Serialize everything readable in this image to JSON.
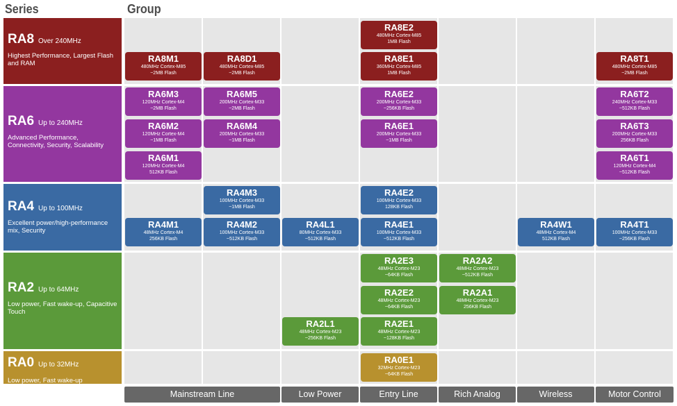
{
  "headers": {
    "series": "Series",
    "group": "Group"
  },
  "series": [
    {
      "code": "RA8",
      "speed": "Over 240MHz",
      "desc": "Highest Performance, Largest Flash and RAM",
      "color": "#8b1f1f"
    },
    {
      "code": "RA6",
      "speed": "Up to 240MHz",
      "desc": "Advanced Performance, Connectivity, Security, Scalability",
      "color": "#93379f"
    },
    {
      "code": "RA4",
      "speed": "Up to 100MHz",
      "desc": "Excellent power/high-performance mix, Security",
      "color": "#3a6aa3"
    },
    {
      "code": "RA2",
      "speed": "Up to 64MHz",
      "desc": "Low power, Fast wake-up, Capacitive Touch",
      "color": "#5b9a3a"
    },
    {
      "code": "RA0",
      "speed": "Up to 32MHz",
      "desc": "Low power, Fast wake-up",
      "color": "#b8912e"
    }
  ],
  "groups": [
    "Mainstream Line",
    "Low Power",
    "Entry Line",
    "Rich Analog",
    "Wireless",
    "Motor Control"
  ],
  "chips": [
    {
      "name": "RA8E2",
      "l1": "480MHz Cortex-M85",
      "l2": "1MB Flash"
    },
    {
      "name": "RA8M1",
      "l1": "480MHz Cortex-M85",
      "l2": "~2MB Flash"
    },
    {
      "name": "RA8D1",
      "l1": "480MHz Cortex-M85",
      "l2": "~2MB Flash"
    },
    {
      "name": "RA8E1",
      "l1": "360MHz Cortex-M85",
      "l2": "1MB Flash"
    },
    {
      "name": "RA8T1",
      "l1": "480MHz Cortex-M85",
      "l2": "~2MB Flash"
    },
    {
      "name": "RA6M3",
      "l1": "120MHz Cortex-M4",
      "l2": "~2MB Flash"
    },
    {
      "name": "RA6M5",
      "l1": "200MHz Cortex-M33",
      "l2": "~2MB Flash"
    },
    {
      "name": "RA6E2",
      "l1": "200MHz Cortex-M33",
      "l2": "~256KB Flash"
    },
    {
      "name": "RA6T2",
      "l1": "240MHz Cortex-M33",
      "l2": "~512KB Flash"
    },
    {
      "name": "RA6M2",
      "l1": "120MHz Cortex-M4",
      "l2": "~1MB Flash"
    },
    {
      "name": "RA6M4",
      "l1": "200MHz Cortex-M33",
      "l2": "~1MB Flash"
    },
    {
      "name": "RA6E1",
      "l1": "200MHz Cortex-M33",
      "l2": "~1MB Flash"
    },
    {
      "name": "RA6T3",
      "l1": "200MHz Cortex-M33",
      "l2": "256KB Flash"
    },
    {
      "name": "RA6M1",
      "l1": "120MHz Cortex-M4",
      "l2": "512KB Flash"
    },
    {
      "name": "RA6T1",
      "l1": "120MHz Cortex-M4",
      "l2": "~512KB Flash"
    },
    {
      "name": "RA4M3",
      "l1": "100MHz Cortex-M33",
      "l2": "~1MB Flash"
    },
    {
      "name": "RA4E2",
      "l1": "100MHz Cortex-M33",
      "l2": "128KB Flash"
    },
    {
      "name": "RA4M1",
      "l1": "48MHz Cortex-M4",
      "l2": "256KB Flash"
    },
    {
      "name": "RA4M2",
      "l1": "100MHz Cortex-M33",
      "l2": "~512KB Flash"
    },
    {
      "name": "RA4L1",
      "l1": "80MHz Cortex-M33",
      "l2": "~512KB Flash"
    },
    {
      "name": "RA4E1",
      "l1": "100MHz Cortex-M33",
      "l2": "~512KB Flash"
    },
    {
      "name": "RA4W1",
      "l1": "48MHz Cortex-M4",
      "l2": "512KB Flash"
    },
    {
      "name": "RA4T1",
      "l1": "100MHz Cortex-M33",
      "l2": "~256KB Flash"
    },
    {
      "name": "RA2E3",
      "l1": "48MHz Cortex-M23",
      "l2": "~64KB Flash"
    },
    {
      "name": "RA2A2",
      "l1": "48MHz Cortex-M23",
      "l2": "~512KB Flash"
    },
    {
      "name": "RA2E2",
      "l1": "48MHz Cortex-M23",
      "l2": "~64KB Flash"
    },
    {
      "name": "RA2A1",
      "l1": "48MHz Cortex-M23",
      "l2": "256KB Flash"
    },
    {
      "name": "RA2L1",
      "l1": "48MHz Cortex-M23",
      "l2": "~256KB Flash"
    },
    {
      "name": "RA2E1",
      "l1": "48MHz Cortex-M23",
      "l2": "~128KB Flash"
    },
    {
      "name": "RA0E1",
      "l1": "32MHz Cortex-M23",
      "l2": "~64KB Flash"
    }
  ]
}
